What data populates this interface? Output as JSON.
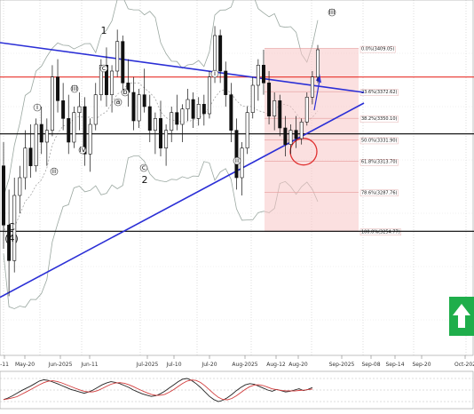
{
  "chart_data": {
    "type": "candlestick",
    "instrument_type": "price chart with Elliott wave annotations, Fibonacci retracement and oscillator subpanel",
    "x_axis": {
      "tick_labels": [
        "-11",
        "May-20",
        "Jun-2025",
        "Jun-11",
        "Jul-2025",
        "Jul-10",
        "Jul-20",
        "Aug-2025",
        "Aug-12",
        "Aug-20",
        "Sep-2025",
        "Sep-08",
        "Sep-14",
        "Sep-20",
        "Oct-202"
      ]
    },
    "fibonacci_levels": [
      {
        "label": "0.0%(3409.05)",
        "value": 3409.05
      },
      {
        "label": "23.6%(3372.62)",
        "value": 3372.62
      },
      {
        "label": "38.2%(3350.10)",
        "value": 3350.1
      },
      {
        "label": "50.0%(3331.90)",
        "value": 3331.9
      },
      {
        "label": "61.8%(3313.70)",
        "value": 3313.7
      },
      {
        "label": "78.6%(3287.76)",
        "value": 3287.76
      },
      {
        "label": "100.0%(3254.77)",
        "value": 3254.77
      }
    ],
    "wave_labels": {
      "primary": [
        "1",
        "2",
        "C",
        "(4)"
      ],
      "circled": [
        "i",
        "ii",
        "iii",
        "iv",
        "a",
        "b",
        "c"
      ],
      "top_marker": "iii"
    },
    "candles": [
      [
        3310,
        3330,
        3240,
        3260
      ],
      [
        3260,
        3290,
        3200,
        3230
      ],
      [
        3230,
        3300,
        3220,
        3285
      ],
      [
        3285,
        3310,
        3270,
        3300
      ],
      [
        3300,
        3340,
        3290,
        3325
      ],
      [
        3325,
        3345,
        3300,
        3310
      ],
      [
        3310,
        3350,
        3305,
        3345
      ],
      [
        3345,
        3360,
        3320,
        3330
      ],
      [
        3330,
        3350,
        3310,
        3340
      ],
      [
        3340,
        3395,
        3335,
        3385
      ],
      [
        3385,
        3400,
        3355,
        3365
      ],
      [
        3365,
        3380,
        3340,
        3350
      ],
      [
        3350,
        3370,
        3320,
        3330
      ],
      [
        3330,
        3360,
        3325,
        3355
      ],
      [
        3355,
        3372,
        3340,
        3360
      ],
      [
        3360,
        3368,
        3310,
        3320
      ],
      [
        3320,
        3350,
        3305,
        3345
      ],
      [
        3345,
        3380,
        3340,
        3370
      ],
      [
        3370,
        3400,
        3365,
        3395
      ],
      [
        3395,
        3410,
        3360,
        3370
      ],
      [
        3370,
        3395,
        3355,
        3390
      ],
      [
        3390,
        3425,
        3385,
        3415
      ],
      [
        3415,
        3420,
        3370,
        3380
      ],
      [
        3380,
        3400,
        3360,
        3372
      ],
      [
        3372,
        3385,
        3340,
        3348
      ],
      [
        3348,
        3375,
        3342,
        3370
      ],
      [
        3370,
        3392,
        3355,
        3360
      ],
      [
        3360,
        3370,
        3330,
        3340
      ],
      [
        3340,
        3355,
        3320,
        3350
      ],
      [
        3350,
        3365,
        3318,
        3325
      ],
      [
        3325,
        3345,
        3310,
        3340
      ],
      [
        3340,
        3360,
        3330,
        3355
      ],
      [
        3355,
        3370,
        3340,
        3345
      ],
      [
        3345,
        3362,
        3330,
        3358
      ],
      [
        3358,
        3375,
        3348,
        3366
      ],
      [
        3366,
        3372,
        3342,
        3350
      ],
      [
        3350,
        3368,
        3344,
        3362
      ],
      [
        3362,
        3370,
        3344,
        3354
      ],
      [
        3354,
        3390,
        3350,
        3385
      ],
      [
        3385,
        3428,
        3380,
        3420
      ],
      [
        3420,
        3425,
        3380,
        3390
      ],
      [
        3390,
        3398,
        3360,
        3370
      ],
      [
        3370,
        3380,
        3330,
        3340
      ],
      [
        3340,
        3350,
        3290,
        3300
      ],
      [
        3300,
        3330,
        3285,
        3325
      ],
      [
        3325,
        3360,
        3320,
        3355
      ],
      [
        3355,
        3385,
        3350,
        3378
      ],
      [
        3378,
        3400,
        3365,
        3395
      ],
      [
        3395,
        3408,
        3370,
        3380
      ],
      [
        3380,
        3390,
        3345,
        3352
      ],
      [
        3352,
        3372,
        3340,
        3365
      ],
      [
        3365,
        3370,
        3335,
        3342
      ],
      [
        3342,
        3352,
        3318,
        3328
      ],
      [
        3328,
        3345,
        3320,
        3340
      ],
      [
        3340,
        3352,
        3325,
        3333
      ],
      [
        3333,
        3350,
        3328,
        3347
      ],
      [
        3347,
        3372,
        3344,
        3368
      ],
      [
        3368,
        3390,
        3362,
        3385
      ],
      [
        3385,
        3412,
        3380,
        3408
      ]
    ],
    "oscillator": [
      20,
      25,
      32,
      40,
      48,
      55,
      62,
      70,
      78,
      82,
      80,
      75,
      70,
      64,
      58,
      52,
      48,
      44,
      40,
      44,
      50,
      58,
      66,
      72,
      76,
      74,
      70,
      64,
      58,
      50,
      44,
      38,
      34,
      30,
      32,
      38,
      46,
      56,
      66,
      76,
      84,
      86,
      80,
      70,
      58,
      44,
      30,
      20,
      14,
      18,
      26,
      36,
      48,
      58,
      66,
      70,
      68,
      62,
      56,
      50,
      46,
      52,
      48,
      44,
      46,
      50,
      54,
      48,
      52,
      58
    ]
  },
  "ui": {
    "buy_arrow_color": "#1fae4b",
    "resistance_line_color": "#e8312a",
    "trendline_color": "#2b2fd6",
    "support_line_color": "#000000",
    "fib_zone_color": "#f7c6c6",
    "band_color": "#9aa7a0"
  }
}
